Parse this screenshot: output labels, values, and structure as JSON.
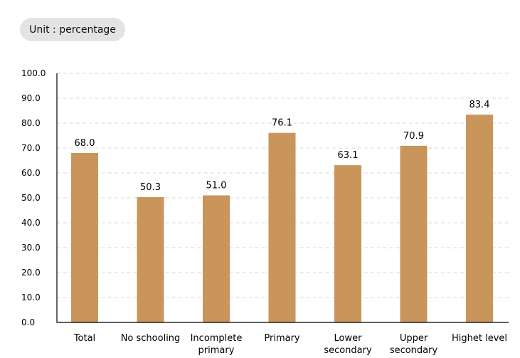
{
  "unit_label": "Unit : percentage",
  "chart_data": {
    "type": "bar",
    "categories": [
      [
        "Total"
      ],
      [
        "No schooling"
      ],
      [
        "Incomplete",
        "primary"
      ],
      [
        "Primary"
      ],
      [
        "Lower",
        "secondary"
      ],
      [
        "Upper",
        "secondary"
      ],
      [
        "Highet level"
      ]
    ],
    "values": [
      68.0,
      50.3,
      51.0,
      76.1,
      63.1,
      70.9,
      83.4
    ],
    "value_labels": [
      "68.0",
      "50.3",
      "51.0",
      "76.1",
      "63.1",
      "70.9",
      "83.4"
    ],
    "ylim": [
      0,
      100
    ],
    "yticks": [
      "0.0",
      "10.0",
      "20.0",
      "30.0",
      "40.0",
      "50.0",
      "60.0",
      "70.0",
      "80.0",
      "90.0",
      "100.0"
    ],
    "grid": "horizontal dashed",
    "bar_color": "#c9955a",
    "grid_color": "#d9d9d9",
    "axis_color": "#000000"
  }
}
